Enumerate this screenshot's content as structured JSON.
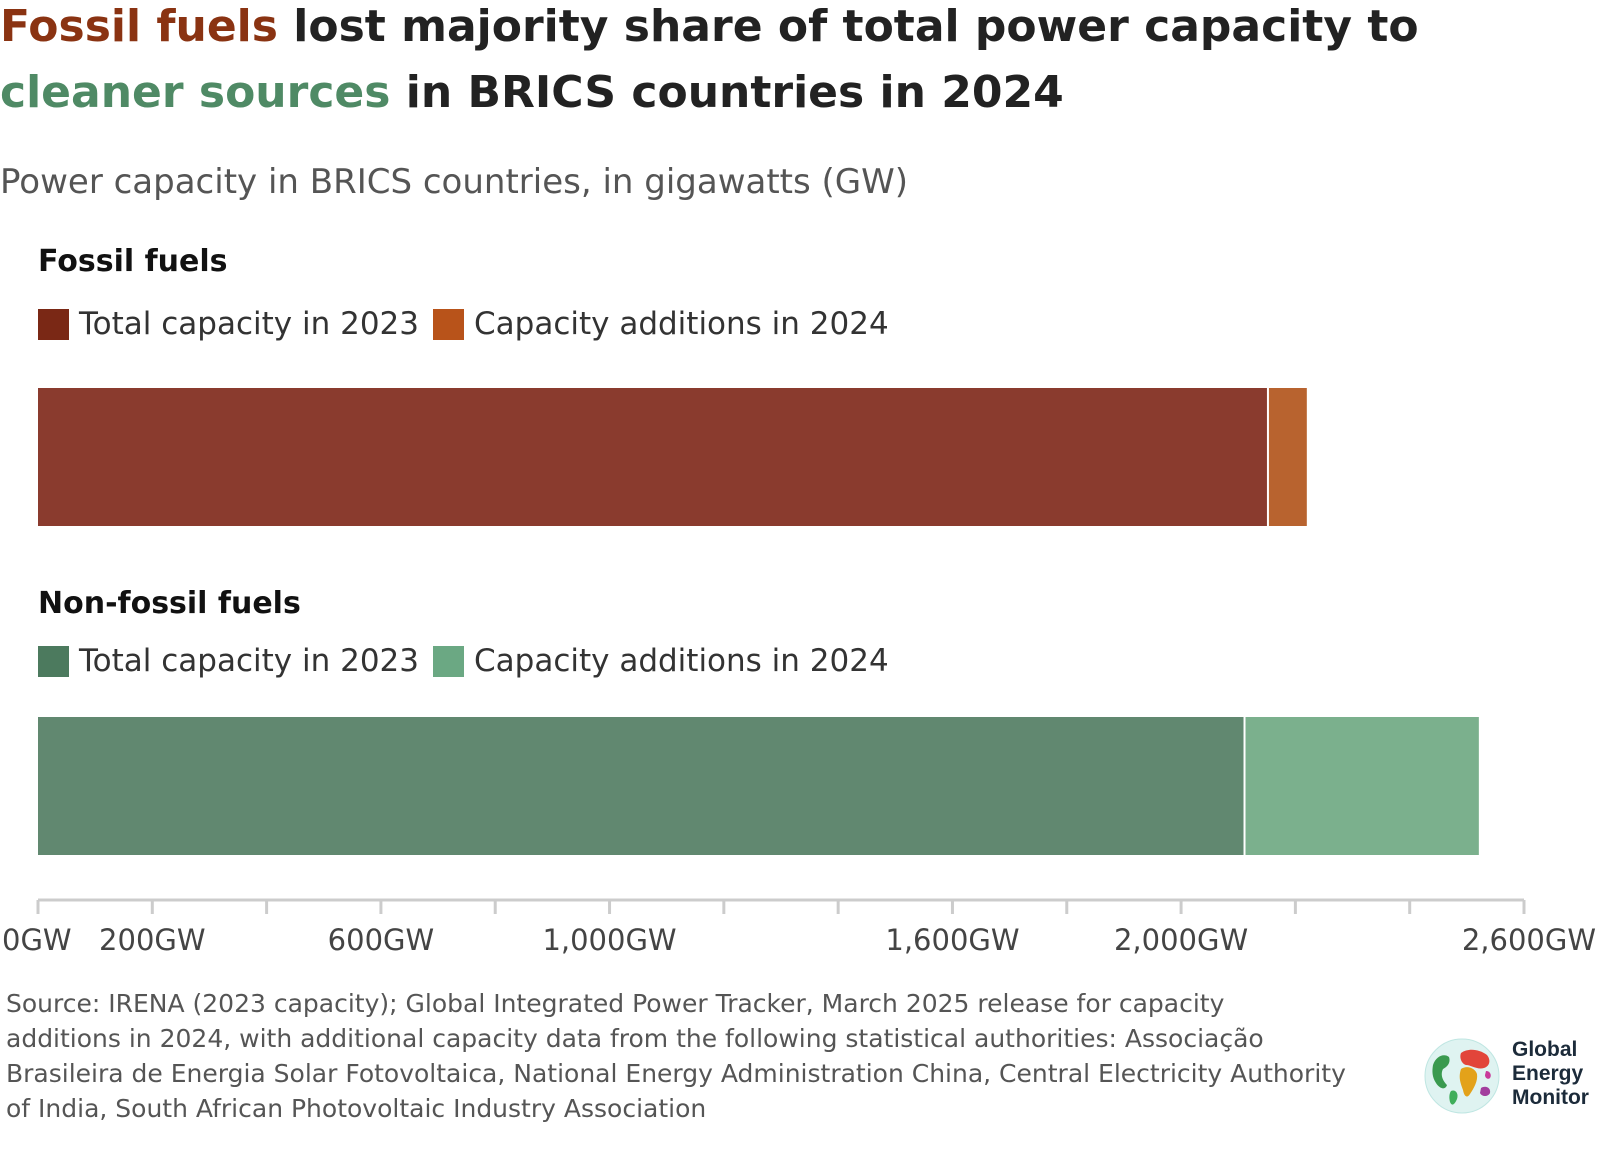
{
  "title": {
    "highlight_fossil": "Fossil fuels",
    "part_1": " lost majority share of total power capacity to ",
    "highlight_clean": "cleaner sources",
    "part_2": " in BRICS countries in 2024"
  },
  "subtitle": "Power capacity in BRICS countries, in gigawatts (GW)",
  "colors": {
    "fossil_2023": "#8a3b2e",
    "fossil_2024": "#b8632f",
    "nonfossil_2023": "#618870",
    "nonfossil_2024": "#7bb08d",
    "fossil_2023_swatch": "#7a2815",
    "fossil_2024_swatch": "#b8531a",
    "nonfossil_2023_swatch": "#4c7a5e",
    "nonfossil_2024_swatch": "#6ba883",
    "title_fossil": "#8a3312",
    "title_clean": "#4f8a65",
    "axis": "#cccccc"
  },
  "sections": {
    "fossil": {
      "heading": "Fossil fuels",
      "legend_total": "Total capacity in 2023",
      "legend_additions": "Capacity additions in 2024"
    },
    "nonfossil": {
      "heading": "Non-fossil fuels",
      "legend_total": "Total capacity in 2023",
      "legend_additions": "Capacity additions in 2024"
    }
  },
  "chart_data": {
    "type": "bar",
    "orientation": "horizontal",
    "stacked": true,
    "categories": [
      "Fossil fuels",
      "Non-fossil fuels"
    ],
    "series": [
      {
        "name": "Total capacity in 2023",
        "values": [
          2152,
          2111
        ]
      },
      {
        "name": "Capacity additions in 2024",
        "values": [
          68,
          410
        ]
      }
    ],
    "title": "Fossil fuels lost majority share of total power capacity to cleaner sources in BRICS countries in 2024",
    "subtitle": "Power capacity in BRICS countries, in gigawatts (GW)",
    "xlim": [
      0,
      2600
    ],
    "x_ticks": [
      0,
      200,
      400,
      600,
      800,
      1000,
      1200,
      1400,
      1600,
      1800,
      2000,
      2200,
      2400,
      2600
    ],
    "x_tick_labels": [
      {
        "value": 0,
        "label": "0GW"
      },
      {
        "value": 200,
        "label": "200GW"
      },
      {
        "value": 600,
        "label": "600GW"
      },
      {
        "value": 1000,
        "label": "1,000GW"
      },
      {
        "value": 1600,
        "label": "1,600GW"
      },
      {
        "value": 2000,
        "label": "2,000GW"
      },
      {
        "value": 2600,
        "label": "2,600GW"
      }
    ],
    "grid": false
  },
  "source": "Source: IRENA (2023 capacity); Global Integrated Power Tracker, March 2025 release for capacity additions in 2024, with additional capacity data from the following statistical authorities: Associação Brasileira de Energia Solar Fotovoltaica, National Energy Administration China, Central Electricity Authority of India, South African Photovoltaic Industry Association",
  "logo": {
    "line_1": "Global",
    "line_2": "Energy",
    "line_3": "Monitor"
  }
}
